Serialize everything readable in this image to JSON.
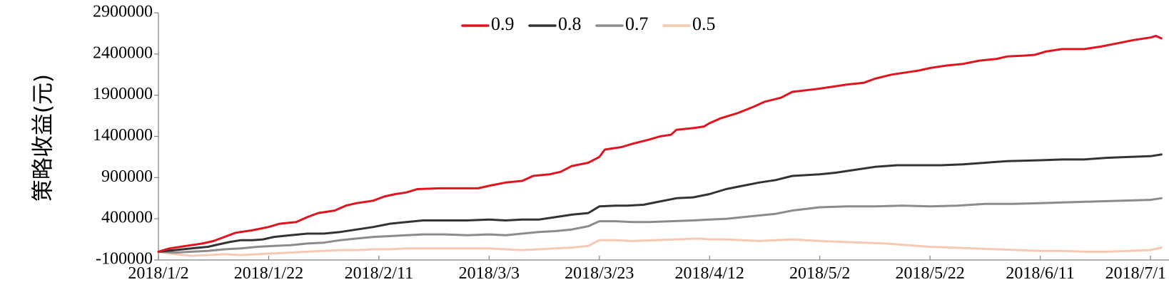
{
  "chart_data": {
    "type": "line",
    "title": "",
    "ylabel": "策略收益(元)",
    "xlabel": "",
    "ylim": [
      -100000,
      2900000
    ],
    "yticks": [
      -100000,
      400000,
      900000,
      1400000,
      1900000,
      2400000,
      2900000
    ],
    "ytick_labels": [
      "-100000",
      "400000",
      "900000",
      "1400000",
      "1900000",
      "2400000",
      "2900000"
    ],
    "xlim": [
      "2018/1/2",
      "2018/7/1"
    ],
    "xticks": [
      "2018/1/2",
      "2018/1/22",
      "2018/2/11",
      "2018/3/3",
      "2018/3/23",
      "2018/4/12",
      "2018/5/2",
      "2018/5/22",
      "2018/6/11",
      "2018/7/1"
    ],
    "xtick_labels": [
      "2018/1/2",
      "2018/1/22",
      "2018/2/11",
      "2018/3/3",
      "2018/3/23",
      "2018/4/12",
      "2018/5/2",
      "2018/5/22",
      "2018/6/11",
      "2018/7/1"
    ],
    "grid": false,
    "legend_position": "top",
    "series": [
      {
        "name": "0.9",
        "color": "#e0141e",
        "points": [
          [
            "2018/1/2",
            0
          ],
          [
            "2018/1/4",
            40000
          ],
          [
            "2018/1/7",
            70000
          ],
          [
            "2018/1/10",
            100000
          ],
          [
            "2018/1/12",
            130000
          ],
          [
            "2018/1/14",
            180000
          ],
          [
            "2018/1/16",
            230000
          ],
          [
            "2018/1/19",
            260000
          ],
          [
            "2018/1/22",
            300000
          ],
          [
            "2018/1/24",
            340000
          ],
          [
            "2018/1/27",
            360000
          ],
          [
            "2018/1/29",
            420000
          ],
          [
            "2018/1/31",
            470000
          ],
          [
            "2018/2/3",
            500000
          ],
          [
            "2018/2/5",
            560000
          ],
          [
            "2018/2/7",
            590000
          ],
          [
            "2018/2/10",
            620000
          ],
          [
            "2018/2/12",
            670000
          ],
          [
            "2018/2/14",
            700000
          ],
          [
            "2018/2/16",
            720000
          ],
          [
            "2018/2/18",
            760000
          ],
          [
            "2018/2/22",
            770000
          ],
          [
            "2018/2/26",
            770000
          ],
          [
            "2018/3/1",
            770000
          ],
          [
            "2018/3/3",
            800000
          ],
          [
            "2018/3/6",
            840000
          ],
          [
            "2018/3/9",
            860000
          ],
          [
            "2018/3/11",
            920000
          ],
          [
            "2018/3/14",
            940000
          ],
          [
            "2018/3/16",
            970000
          ],
          [
            "2018/3/18",
            1040000
          ],
          [
            "2018/3/21",
            1080000
          ],
          [
            "2018/3/23",
            1150000
          ],
          [
            "2018/3/24",
            1240000
          ],
          [
            "2018/3/27",
            1270000
          ],
          [
            "2018/3/29",
            1310000
          ],
          [
            "2018/4/1",
            1360000
          ],
          [
            "2018/4/3",
            1400000
          ],
          [
            "2018/4/5",
            1420000
          ],
          [
            "2018/4/6",
            1480000
          ],
          [
            "2018/4/9",
            1500000
          ],
          [
            "2018/4/11",
            1520000
          ],
          [
            "2018/4/12",
            1560000
          ],
          [
            "2018/4/14",
            1620000
          ],
          [
            "2018/4/17",
            1680000
          ],
          [
            "2018/4/20",
            1760000
          ],
          [
            "2018/4/22",
            1820000
          ],
          [
            "2018/4/25",
            1870000
          ],
          [
            "2018/4/27",
            1940000
          ],
          [
            "2018/5/2",
            1980000
          ],
          [
            "2018/5/4",
            2000000
          ],
          [
            "2018/5/7",
            2030000
          ],
          [
            "2018/5/10",
            2050000
          ],
          [
            "2018/5/12",
            2100000
          ],
          [
            "2018/5/15",
            2150000
          ],
          [
            "2018/5/18",
            2180000
          ],
          [
            "2018/5/20",
            2200000
          ],
          [
            "2018/5/22",
            2230000
          ],
          [
            "2018/5/25",
            2260000
          ],
          [
            "2018/5/28",
            2280000
          ],
          [
            "2018/5/31",
            2320000
          ],
          [
            "2018/6/3",
            2340000
          ],
          [
            "2018/6/5",
            2370000
          ],
          [
            "2018/6/8",
            2380000
          ],
          [
            "2018/6/10",
            2390000
          ],
          [
            "2018/6/12",
            2430000
          ],
          [
            "2018/6/15",
            2460000
          ],
          [
            "2018/6/19",
            2460000
          ],
          [
            "2018/6/22",
            2490000
          ],
          [
            "2018/6/25",
            2530000
          ],
          [
            "2018/6/28",
            2570000
          ],
          [
            "2018/7/1",
            2600000
          ],
          [
            "2018/7/2",
            2620000
          ],
          [
            "2018/7/3",
            2590000
          ]
        ]
      },
      {
        "name": "0.8",
        "color": "#333333",
        "points": [
          [
            "2018/1/2",
            0
          ],
          [
            "2018/1/5",
            20000
          ],
          [
            "2018/1/8",
            40000
          ],
          [
            "2018/1/11",
            60000
          ],
          [
            "2018/1/13",
            90000
          ],
          [
            "2018/1/15",
            120000
          ],
          [
            "2018/1/17",
            140000
          ],
          [
            "2018/1/19",
            140000
          ],
          [
            "2018/1/21",
            150000
          ],
          [
            "2018/1/23",
            180000
          ],
          [
            "2018/1/26",
            200000
          ],
          [
            "2018/1/29",
            220000
          ],
          [
            "2018/2/1",
            220000
          ],
          [
            "2018/2/4",
            240000
          ],
          [
            "2018/2/7",
            270000
          ],
          [
            "2018/2/10",
            300000
          ],
          [
            "2018/2/13",
            340000
          ],
          [
            "2018/2/16",
            360000
          ],
          [
            "2018/2/19",
            380000
          ],
          [
            "2018/2/23",
            380000
          ],
          [
            "2018/2/27",
            380000
          ],
          [
            "2018/3/3",
            390000
          ],
          [
            "2018/3/6",
            380000
          ],
          [
            "2018/3/9",
            390000
          ],
          [
            "2018/3/12",
            390000
          ],
          [
            "2018/3/15",
            420000
          ],
          [
            "2018/3/18",
            450000
          ],
          [
            "2018/3/21",
            470000
          ],
          [
            "2018/3/23",
            550000
          ],
          [
            "2018/3/26",
            560000
          ],
          [
            "2018/3/28",
            560000
          ],
          [
            "2018/3/31",
            570000
          ],
          [
            "2018/4/3",
            610000
          ],
          [
            "2018/4/6",
            650000
          ],
          [
            "2018/4/9",
            660000
          ],
          [
            "2018/4/12",
            700000
          ],
          [
            "2018/4/15",
            760000
          ],
          [
            "2018/4/18",
            800000
          ],
          [
            "2018/4/21",
            840000
          ],
          [
            "2018/4/24",
            870000
          ],
          [
            "2018/4/27",
            920000
          ],
          [
            "2018/5/2",
            940000
          ],
          [
            "2018/5/5",
            960000
          ],
          [
            "2018/5/8",
            990000
          ],
          [
            "2018/5/12",
            1030000
          ],
          [
            "2018/5/16",
            1050000
          ],
          [
            "2018/5/20",
            1050000
          ],
          [
            "2018/5/24",
            1050000
          ],
          [
            "2018/5/28",
            1060000
          ],
          [
            "2018/6/1",
            1080000
          ],
          [
            "2018/6/5",
            1100000
          ],
          [
            "2018/6/11",
            1110000
          ],
          [
            "2018/6/15",
            1120000
          ],
          [
            "2018/6/19",
            1120000
          ],
          [
            "2018/6/23",
            1140000
          ],
          [
            "2018/6/27",
            1150000
          ],
          [
            "2018/7/1",
            1160000
          ],
          [
            "2018/7/3",
            1180000
          ]
        ]
      },
      {
        "name": "0.7",
        "color": "#8c8c8c",
        "points": [
          [
            "2018/1/2",
            0
          ],
          [
            "2018/1/5",
            -10000
          ],
          [
            "2018/1/8",
            0
          ],
          [
            "2018/1/11",
            10000
          ],
          [
            "2018/1/14",
            30000
          ],
          [
            "2018/1/17",
            40000
          ],
          [
            "2018/1/20",
            60000
          ],
          [
            "2018/1/23",
            70000
          ],
          [
            "2018/1/26",
            80000
          ],
          [
            "2018/1/29",
            100000
          ],
          [
            "2018/2/1",
            110000
          ],
          [
            "2018/2/4",
            140000
          ],
          [
            "2018/2/7",
            160000
          ],
          [
            "2018/2/10",
            180000
          ],
          [
            "2018/2/13",
            190000
          ],
          [
            "2018/2/16",
            200000
          ],
          [
            "2018/2/19",
            210000
          ],
          [
            "2018/2/23",
            210000
          ],
          [
            "2018/2/27",
            200000
          ],
          [
            "2018/3/3",
            210000
          ],
          [
            "2018/3/6",
            200000
          ],
          [
            "2018/3/9",
            220000
          ],
          [
            "2018/3/12",
            240000
          ],
          [
            "2018/3/15",
            250000
          ],
          [
            "2018/3/18",
            270000
          ],
          [
            "2018/3/21",
            310000
          ],
          [
            "2018/3/23",
            370000
          ],
          [
            "2018/3/26",
            370000
          ],
          [
            "2018/3/29",
            360000
          ],
          [
            "2018/4/1",
            360000
          ],
          [
            "2018/4/5",
            370000
          ],
          [
            "2018/4/9",
            380000
          ],
          [
            "2018/4/12",
            390000
          ],
          [
            "2018/4/15",
            400000
          ],
          [
            "2018/4/18",
            420000
          ],
          [
            "2018/4/21",
            440000
          ],
          [
            "2018/4/24",
            460000
          ],
          [
            "2018/4/27",
            500000
          ],
          [
            "2018/5/2",
            540000
          ],
          [
            "2018/5/7",
            550000
          ],
          [
            "2018/5/12",
            550000
          ],
          [
            "2018/5/17",
            560000
          ],
          [
            "2018/5/22",
            550000
          ],
          [
            "2018/5/27",
            560000
          ],
          [
            "2018/6/1",
            580000
          ],
          [
            "2018/6/6",
            580000
          ],
          [
            "2018/6/11",
            590000
          ],
          [
            "2018/6/16",
            600000
          ],
          [
            "2018/6/21",
            610000
          ],
          [
            "2018/6/26",
            620000
          ],
          [
            "2018/7/1",
            630000
          ],
          [
            "2018/7/3",
            650000
          ]
        ]
      },
      {
        "name": "0.5",
        "color": "#f7c9b0",
        "points": [
          [
            "2018/1/2",
            0
          ],
          [
            "2018/1/5",
            -30000
          ],
          [
            "2018/1/8",
            -50000
          ],
          [
            "2018/1/11",
            -40000
          ],
          [
            "2018/1/14",
            -30000
          ],
          [
            "2018/1/17",
            -40000
          ],
          [
            "2018/1/20",
            -30000
          ],
          [
            "2018/1/23",
            -20000
          ],
          [
            "2018/1/26",
            -10000
          ],
          [
            "2018/1/29",
            0
          ],
          [
            "2018/2/1",
            10000
          ],
          [
            "2018/2/4",
            20000
          ],
          [
            "2018/2/7",
            20000
          ],
          [
            "2018/2/10",
            30000
          ],
          [
            "2018/2/13",
            30000
          ],
          [
            "2018/2/16",
            40000
          ],
          [
            "2018/2/20",
            40000
          ],
          [
            "2018/2/24",
            40000
          ],
          [
            "2018/2/28",
            40000
          ],
          [
            "2018/3/3",
            40000
          ],
          [
            "2018/3/6",
            30000
          ],
          [
            "2018/3/9",
            20000
          ],
          [
            "2018/3/12",
            30000
          ],
          [
            "2018/3/15",
            40000
          ],
          [
            "2018/3/18",
            50000
          ],
          [
            "2018/3/21",
            70000
          ],
          [
            "2018/3/23",
            140000
          ],
          [
            "2018/3/26",
            140000
          ],
          [
            "2018/3/29",
            130000
          ],
          [
            "2018/4/2",
            140000
          ],
          [
            "2018/4/6",
            150000
          ],
          [
            "2018/4/10",
            160000
          ],
          [
            "2018/4/12",
            150000
          ],
          [
            "2018/4/15",
            150000
          ],
          [
            "2018/4/18",
            140000
          ],
          [
            "2018/4/21",
            130000
          ],
          [
            "2018/4/24",
            140000
          ],
          [
            "2018/4/27",
            150000
          ],
          [
            "2018/5/2",
            130000
          ],
          [
            "2018/5/6",
            120000
          ],
          [
            "2018/5/10",
            110000
          ],
          [
            "2018/5/14",
            100000
          ],
          [
            "2018/5/18",
            80000
          ],
          [
            "2018/5/22",
            60000
          ],
          [
            "2018/5/26",
            50000
          ],
          [
            "2018/5/30",
            40000
          ],
          [
            "2018/6/3",
            30000
          ],
          [
            "2018/6/7",
            20000
          ],
          [
            "2018/6/11",
            10000
          ],
          [
            "2018/6/15",
            10000
          ],
          [
            "2018/6/19",
            0
          ],
          [
            "2018/6/23",
            0
          ],
          [
            "2018/6/27",
            10000
          ],
          [
            "2018/7/1",
            20000
          ],
          [
            "2018/7/3",
            50000
          ]
        ]
      }
    ]
  }
}
